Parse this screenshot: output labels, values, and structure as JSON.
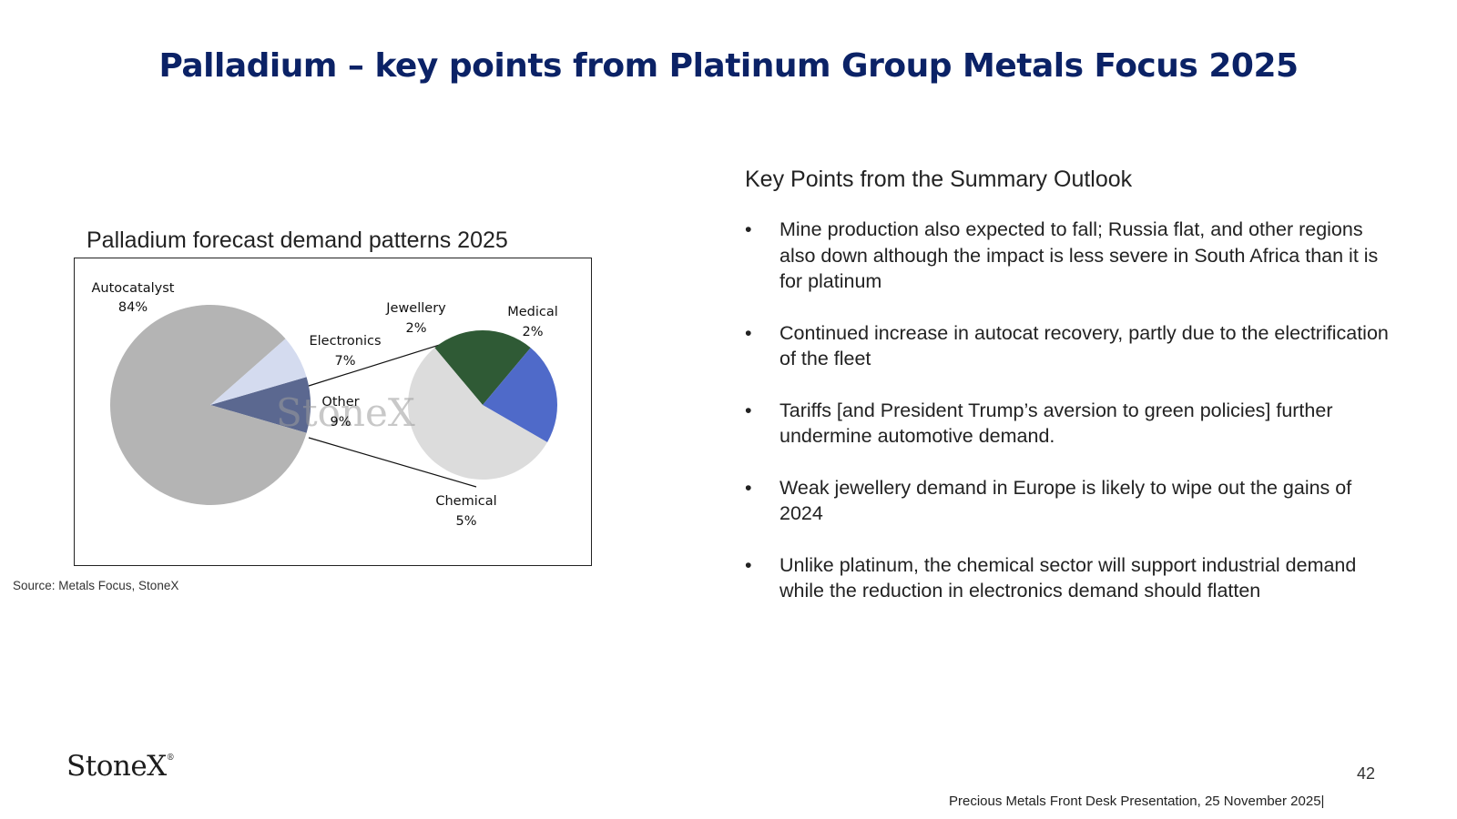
{
  "header": {
    "title": "Palladium – key points from Platinum Group Metals Focus 2025"
  },
  "chart_title": "Palladium forecast demand patterns 2025",
  "source": "Source: Metals Focus, StoneX",
  "chart_data": {
    "type": "pie",
    "title": "Palladium forecast demand patterns 2025",
    "main_pie": [
      {
        "label": "Autocatalyst",
        "value_label": "84%",
        "value": 84,
        "color": "#b4b4b4"
      },
      {
        "label": "Electronics",
        "value_label": "7%",
        "value": 7,
        "color": "#d4dbef"
      },
      {
        "label": "Other",
        "value_label": "9%",
        "value": 9,
        "color": "#5b6890"
      }
    ],
    "breakout_of": "Other",
    "breakout_pie": [
      {
        "label": "Jewellery",
        "value_label": "2%",
        "value": 2,
        "color": "#2f5a35"
      },
      {
        "label": "Medical",
        "value_label": "2%",
        "value": 2,
        "color": "#4f6ac9"
      },
      {
        "label": "Chemical",
        "value_label": "5%",
        "value": 5,
        "color": "#dcdcdc"
      }
    ],
    "watermark": "StoneX"
  },
  "key_points": {
    "title": "Key Points from the Summary Outlook",
    "bullet_char": "•",
    "items": [
      "Mine production also expected to fall; Russia flat, and other regions also down although the impact is less severe in South Africa than it is for platinum",
      "Continued increase in autocat recovery, partly due to the electrification of the fleet",
      "Tariffs [and President Trump’s aversion to green policies] further undermine automotive demand.",
      "Weak jewellery demand in Europe is likely to wipe out the gains of 2024",
      "Unlike platinum, the chemical sector will support industrial demand while the reduction in electronics demand should flatten"
    ]
  },
  "footer": {
    "logo": "StoneX",
    "logo_mark": "®",
    "page_number": "42",
    "presentation": "Precious Metals Front Desk Presentation, 25 November 2025|"
  }
}
